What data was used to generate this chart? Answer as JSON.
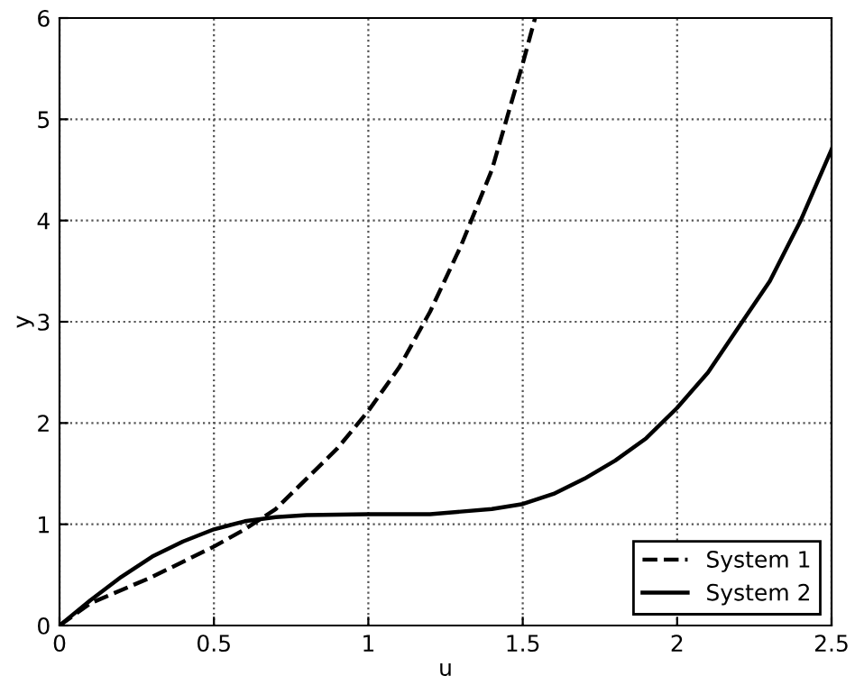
{
  "chart_data": {
    "type": "line",
    "xlabel": "u",
    "ylabel": "y",
    "xlim": [
      0,
      2.5
    ],
    "ylim": [
      0,
      6
    ],
    "xticks": [
      0,
      0.5,
      1,
      1.5,
      2,
      2.5
    ],
    "yticks": [
      0,
      1,
      2,
      3,
      4,
      5,
      6
    ],
    "grid": true,
    "legend": "bottom right",
    "series": [
      {
        "name": "System 1",
        "color": "#000000",
        "line_style": "dashed",
        "x": [
          0,
          0.1,
          0.2,
          0.3,
          0.4,
          0.5,
          0.6,
          0.65,
          0.7,
          0.8,
          0.9,
          1.0,
          1.1,
          1.2,
          1.3,
          1.4,
          1.5,
          1.54
        ],
        "values": [
          0,
          0.22,
          0.35,
          0.48,
          0.63,
          0.78,
          0.95,
          1.05,
          1.15,
          1.45,
          1.75,
          2.12,
          2.55,
          3.1,
          3.75,
          4.5,
          5.55,
          6
        ]
      },
      {
        "name": "System 2",
        "color": "#000000",
        "line_style": "solid",
        "x": [
          0,
          0.1,
          0.2,
          0.3,
          0.4,
          0.5,
          0.6,
          0.7,
          0.8,
          1.0,
          1.2,
          1.4,
          1.5,
          1.6,
          1.7,
          1.8,
          1.9,
          2.0,
          2.1,
          2.2,
          2.3,
          2.4,
          2.5
        ],
        "values": [
          0,
          0.25,
          0.48,
          0.68,
          0.83,
          0.95,
          1.03,
          1.07,
          1.09,
          1.1,
          1.1,
          1.15,
          1.2,
          1.3,
          1.45,
          1.63,
          1.85,
          2.15,
          2.5,
          2.95,
          3.4,
          4.0,
          4.7
        ]
      }
    ]
  }
}
